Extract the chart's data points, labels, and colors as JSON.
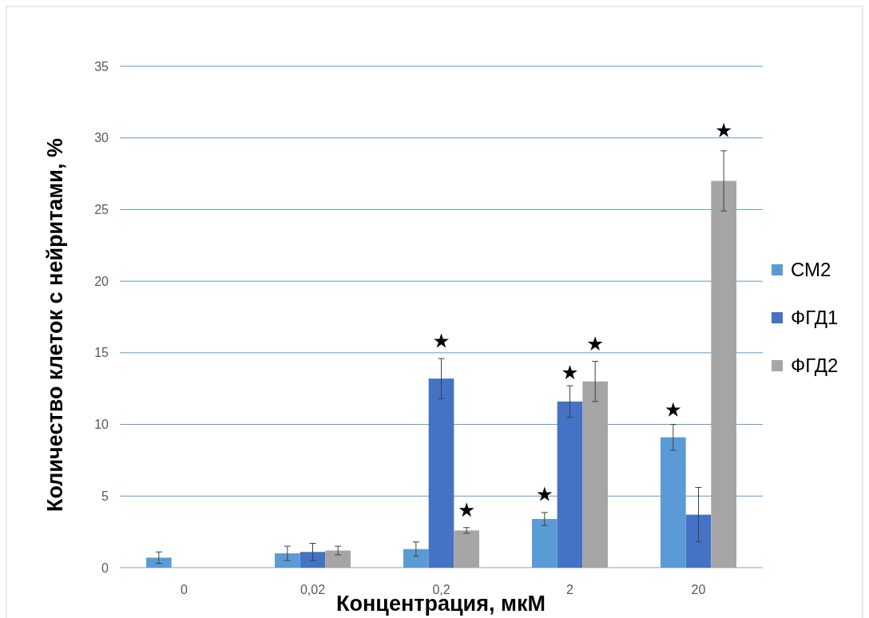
{
  "chart_data": {
    "type": "bar",
    "xlabel": "Концентрация, мкМ",
    "ylabel": "Количество клеток с нейритами, %",
    "categories": [
      "0",
      "0,02",
      "0,2",
      "2",
      "20"
    ],
    "series": [
      {
        "name": "СМ2",
        "color": "#5b9bd5",
        "values": [
          0.7,
          1.0,
          1.3,
          3.4,
          9.1
        ],
        "errors": [
          0.4,
          0.5,
          0.5,
          0.45,
          0.9
        ]
      },
      {
        "name": "ФГД1",
        "color": "#4472c4",
        "values": [
          null,
          1.1,
          13.2,
          11.6,
          3.7
        ],
        "errors": [
          null,
          0.6,
          1.4,
          1.1,
          1.9
        ]
      },
      {
        "name": "ФГД2",
        "color": "#a5a5a5",
        "values": [
          null,
          1.2,
          2.6,
          13.0,
          27.0
        ],
        "errors": [
          null,
          0.3,
          0.2,
          1.4,
          2.1
        ]
      },
      {
        "type": "scatter",
        "color": "#000000",
        "x": [
          "2",
          "20"
        ],
        "values": [
          5.1,
          11.0
        ]
      },
      {
        "type": "scatter",
        "color": "#000000",
        "x": [
          "0,2",
          "2"
        ],
        "values": [
          15.8,
          13.6
        ]
      },
      {
        "type": "scatter",
        "color": "#000000",
        "x": [
          "0,2",
          "2",
          "20"
        ],
        "values": [
          4.0,
          15.6,
          30.5
        ]
      }
    ],
    "marker": "star",
    "ylim": [
      0,
      35
    ],
    "yticks": [
      0,
      5,
      10,
      15,
      20,
      25,
      30,
      35
    ],
    "grid": "y",
    "legend": "right"
  }
}
